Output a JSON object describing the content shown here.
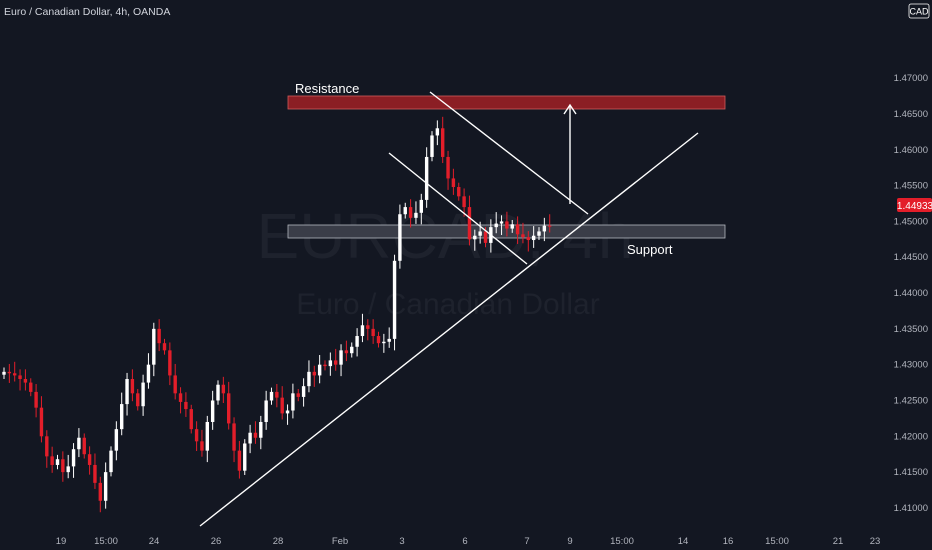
{
  "header": {
    "title": "Euro / Canadian Dollar, 4h, OANDA",
    "currency": "CAD"
  },
  "watermark": {
    "symbol": "EURCAD, 4h",
    "name": "Euro / Canadian Dollar"
  },
  "colors": {
    "background": "#131722",
    "up": "#ffffff",
    "down": "#e31e2a",
    "axis_text": "#b2b5be",
    "resistance_fill": "#8b1e24",
    "support_fill": "#3a3d48",
    "price_badge": "#e31e2a",
    "line": "#ffffff"
  },
  "chart_data": {
    "type": "candlestick",
    "title": "Euro / Canadian Dollar, 4h, OANDA",
    "y_axis": {
      "ticks": [
        "1.47000",
        "1.46500",
        "1.46000",
        "1.45500",
        "1.45000",
        "1.44500",
        "1.44000",
        "1.43500",
        "1.43000",
        "1.42500",
        "1.42000",
        "1.41500",
        "1.41000"
      ],
      "min": 1.4072,
      "max": 1.477
    },
    "x_axis": {
      "ticks": [
        "19",
        "15:00",
        "24",
        "26",
        "28",
        "Feb",
        "3",
        "6",
        "7",
        "9",
        "15:00",
        "14",
        "16",
        "15:00",
        "21",
        "23"
      ]
    },
    "current_price": "1.44933",
    "annotations": {
      "resistance": {
        "label": "Resistance",
        "top": 1.4637,
        "bottom": 1.462
      },
      "support": {
        "label": "Support",
        "top": 1.4468,
        "bottom": 1.445
      }
    },
    "closes": [
      1.429,
      1.4288,
      1.4285,
      1.428,
      1.4275,
      1.4262,
      1.424,
      1.42,
      1.4172,
      1.416,
      1.4168,
      1.415,
      1.4158,
      1.4182,
      1.4198,
      1.4175,
      1.416,
      1.4135,
      1.411,
      1.415,
      1.418,
      1.421,
      1.4245,
      1.428,
      1.426,
      1.4242,
      1.4275,
      1.43,
      1.435,
      1.433,
      1.432,
      1.4285,
      1.426,
      1.4248,
      1.4238,
      1.421,
      1.4193,
      1.418,
      1.422,
      1.425,
      1.4272,
      1.426,
      1.4218,
      1.418,
      1.4152,
      1.419,
      1.4205,
      1.4198,
      1.422,
      1.425,
      1.4262,
      1.4254,
      1.4232,
      1.4236,
      1.426,
      1.4255,
      1.427,
      1.429,
      1.4285,
      1.43,
      1.4298,
      1.4306,
      1.43,
      1.432,
      1.4316,
      1.4325,
      1.434,
      1.4355,
      1.435,
      1.434,
      1.433,
      1.4332,
      1.4336,
      1.4445,
      1.451,
      1.452,
      1.4505,
      1.4512,
      1.453,
      1.459,
      1.462,
      1.463,
      1.459,
      1.456,
      1.4548,
      1.4535,
      1.452,
      1.4475,
      1.448,
      1.4486,
      1.447,
      1.4492,
      1.4497,
      1.45,
      1.449,
      1.4496,
      1.4482,
      1.4478,
      1.4474,
      1.448,
      1.4486,
      1.4494,
      1.4493
    ]
  }
}
